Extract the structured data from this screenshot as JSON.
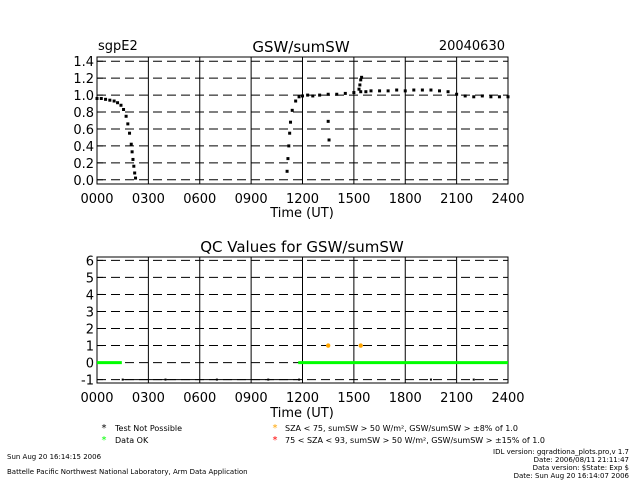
{
  "header": {
    "site": "sgpE2",
    "date": "20040630"
  },
  "chart_data": [
    {
      "type": "scatter",
      "title": "GSW/sumSW",
      "xlabel": "Time (UT)",
      "ylabel": "",
      "xlim": [
        0,
        24
      ],
      "ylim": [
        -0.05,
        1.45
      ],
      "x_ticks": [
        "0000",
        "0300",
        "0600",
        "0900",
        "1200",
        "1500",
        "1800",
        "2100",
        "2400"
      ],
      "y_ticks": [
        "0.0",
        "0.2",
        "0.4",
        "0.6",
        "0.8",
        "1.0",
        "1.2",
        "1.4"
      ],
      "grid": true,
      "series": [
        {
          "x": [
            0.0,
            0.25,
            0.5,
            0.75,
            1.0,
            1.2,
            1.4,
            1.55,
            1.7,
            1.8,
            1.9,
            2.0,
            2.05,
            2.1,
            2.15,
            2.2,
            2.25,
            11.1,
            11.15,
            11.2,
            11.25,
            11.3,
            11.4,
            11.6,
            11.8,
            12.0,
            12.3,
            12.6,
            13.0,
            13.5,
            14.0,
            14.5,
            15.0,
            15.4,
            15.7,
            16.0,
            16.5,
            17.0,
            17.5,
            18.0,
            18.5,
            19.0,
            19.5,
            20.0,
            20.5,
            21.0,
            21.5,
            22.0,
            22.5,
            23.0,
            23.5,
            24.0,
            13.5,
            13.55,
            15.3,
            15.35,
            15.4,
            15.45
          ],
          "y": [
            0.96,
            0.96,
            0.95,
            0.94,
            0.93,
            0.91,
            0.88,
            0.83,
            0.75,
            0.66,
            0.55,
            0.42,
            0.33,
            0.24,
            0.16,
            0.08,
            0.02,
            0.1,
            0.25,
            0.4,
            0.55,
            0.68,
            0.82,
            0.93,
            0.98,
            0.99,
            1.0,
            0.99,
            1.0,
            1.01,
            1.01,
            1.02,
            1.03,
            1.04,
            1.04,
            1.05,
            1.05,
            1.05,
            1.06,
            1.05,
            1.06,
            1.06,
            1.06,
            1.05,
            1.04,
            1.01,
            0.99,
            0.98,
            0.99,
            0.98,
            0.98,
            0.98,
            0.69,
            0.47,
            1.07,
            1.12,
            1.18,
            1.21
          ]
        }
      ]
    },
    {
      "type": "scatter",
      "title": "QC Values for GSW/sumSW",
      "xlabel": "Time (UT)",
      "ylabel": "",
      "xlim": [
        0,
        24
      ],
      "ylim": [
        -1.2,
        6.2
      ],
      "x_ticks": [
        "0000",
        "0300",
        "0600",
        "0900",
        "1200",
        "1500",
        "1800",
        "2100",
        "2400"
      ],
      "y_ticks": [
        "-1",
        "0",
        "1",
        "2",
        "3",
        "4",
        "5",
        "6"
      ],
      "grid": true,
      "series": [
        {
          "name": "Test Not Possible",
          "color": "#000000",
          "x": [
            1.5,
            4.0,
            7.0,
            10.0,
            11.8,
            19.5,
            22.0
          ],
          "y": [
            -1,
            -1,
            -1,
            -1,
            -1,
            -1,
            -1
          ]
        },
        {
          "name": "Data OK",
          "color": "#00ff00",
          "x": [
            0.0,
            1.45,
            11.75,
            24.0
          ],
          "y": [
            0,
            0,
            0,
            0
          ]
        },
        {
          "name": "SZA < 75, sumSW > 50 W/m², GSW/sumSW > ±8% of 1.0",
          "color": "#ffa500",
          "x": [
            13.5,
            15.4
          ],
          "y": [
            1,
            1
          ]
        },
        {
          "name": "75 < SZA < 93, sumSW > 50 W/m², GSW/sumSW > ±15% of 1.0",
          "color": "#ff0000",
          "x": [],
          "y": []
        }
      ]
    }
  ],
  "legend": [
    {
      "symbol": "*",
      "color": "#000000",
      "label": "Test Not Possible"
    },
    {
      "symbol": "*",
      "color": "#00ff00",
      "label": "Data OK"
    },
    {
      "symbol": "*",
      "color": "#ffa500",
      "label": "SZA < 75, sumSW > 50 W/m², GSW/sumSW > ±8% of 1.0"
    },
    {
      "symbol": "*",
      "color": "#ff0000",
      "label": "75 < SZA < 93, sumSW > 50 W/m², GSW/sumSW > ±15% of 1.0"
    }
  ],
  "footer": {
    "run_date": "Sun Aug 20 16:14:15 2006",
    "org": "Battelle Pacific Northwest National Laboratory, Arm Data Application",
    "idl_version": "IDL version: gqradtiona_plots.pro,v 1.7",
    "file_date": "Date: 2006/08/11 21:11:47",
    "data_version": "Data version: $State: Exp $",
    "data_date": "Date: Sun Aug 20 16:14:07 2006"
  }
}
